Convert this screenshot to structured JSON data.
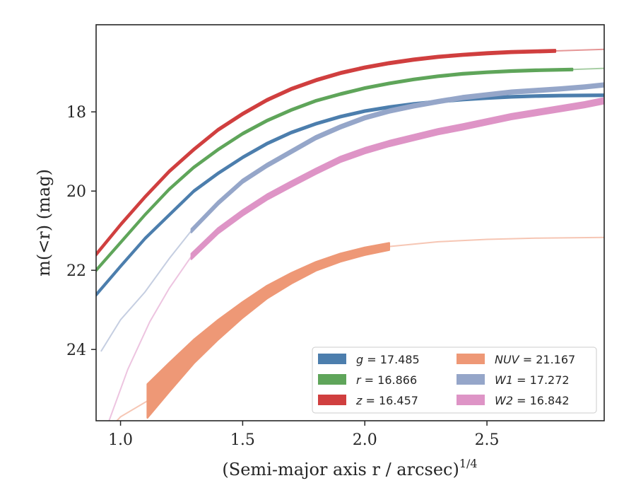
{
  "chart_data": {
    "type": "line",
    "xlabel": "(Semi-major axis r / arcsec)",
    "xlabel_sup": "1/4",
    "ylabel": "m(<r) (mag)",
    "xlim": [
      0.9,
      2.98
    ],
    "ylim": [
      25.8,
      15.8
    ],
    "y_inverted": true,
    "grid": false,
    "legend_position": "lower-right",
    "x_ticks": [
      1.0,
      1.5,
      2.0,
      2.5
    ],
    "x_tick_labels": [
      "1.0",
      "1.5",
      "2.0",
      "2.5"
    ],
    "y_ticks": [
      18,
      20,
      22,
      24
    ],
    "y_tick_labels": [
      "18",
      "20",
      "22",
      "24"
    ],
    "series": [
      {
        "name": "g = 17.485",
        "color": "#4c7ead",
        "band": 0.05,
        "fit": [
          [
            0.9,
            22.62
          ],
          [
            1.0,
            21.9
          ],
          [
            1.1,
            21.2
          ],
          [
            1.2,
            20.6
          ],
          [
            1.3,
            20.0
          ],
          [
            1.4,
            19.55
          ],
          [
            1.5,
            19.15
          ],
          [
            1.6,
            18.8
          ],
          [
            1.7,
            18.52
          ],
          [
            1.8,
            18.3
          ],
          [
            1.9,
            18.12
          ],
          [
            2.0,
            17.98
          ],
          [
            2.1,
            17.88
          ],
          [
            2.2,
            17.8
          ],
          [
            2.3,
            17.74
          ],
          [
            2.4,
            17.69
          ],
          [
            2.5,
            17.65
          ],
          [
            2.6,
            17.62
          ],
          [
            2.7,
            17.6
          ],
          [
            2.8,
            17.59
          ],
          [
            2.98,
            17.58
          ]
        ],
        "faded": []
      },
      {
        "name": "r = 16.866",
        "color": "#5fa55a",
        "band": 0.05,
        "fit": [
          [
            0.9,
            22.0
          ],
          [
            1.0,
            21.3
          ],
          [
            1.1,
            20.6
          ],
          [
            1.2,
            19.95
          ],
          [
            1.3,
            19.4
          ],
          [
            1.4,
            18.95
          ],
          [
            1.5,
            18.55
          ],
          [
            1.6,
            18.22
          ],
          [
            1.7,
            17.95
          ],
          [
            1.8,
            17.72
          ],
          [
            1.9,
            17.55
          ],
          [
            2.0,
            17.4
          ],
          [
            2.1,
            17.28
          ],
          [
            2.2,
            17.18
          ],
          [
            2.3,
            17.1
          ],
          [
            2.4,
            17.04
          ],
          [
            2.5,
            17.0
          ],
          [
            2.6,
            16.97
          ],
          [
            2.7,
            16.95
          ],
          [
            2.85,
            16.93
          ]
        ],
        "faded": [
          [
            2.85,
            16.93
          ],
          [
            2.98,
            16.9
          ]
        ]
      },
      {
        "name": "z = 16.457",
        "color": "#d03f3f",
        "band": 0.06,
        "fit": [
          [
            0.9,
            21.6
          ],
          [
            1.0,
            20.85
          ],
          [
            1.1,
            20.15
          ],
          [
            1.2,
            19.5
          ],
          [
            1.3,
            18.95
          ],
          [
            1.4,
            18.45
          ],
          [
            1.5,
            18.05
          ],
          [
            1.6,
            17.7
          ],
          [
            1.7,
            17.42
          ],
          [
            1.8,
            17.2
          ],
          [
            1.9,
            17.02
          ],
          [
            2.0,
            16.88
          ],
          [
            2.1,
            16.77
          ],
          [
            2.2,
            16.68
          ],
          [
            2.3,
            16.61
          ],
          [
            2.4,
            16.56
          ],
          [
            2.5,
            16.52
          ],
          [
            2.6,
            16.49
          ],
          [
            2.78,
            16.46
          ]
        ],
        "faded": [
          [
            2.78,
            16.46
          ],
          [
            2.98,
            16.42
          ]
        ]
      },
      {
        "name": "NUV = 21.167",
        "color": "#ee9876",
        "band_series": [
          [
            1.11,
            0.85
          ],
          [
            1.3,
            0.6
          ],
          [
            1.55,
            0.35
          ],
          [
            1.8,
            0.22
          ],
          [
            2.1,
            0.18
          ]
        ],
        "fit": [
          [
            1.11,
            25.3
          ],
          [
            1.2,
            24.7
          ],
          [
            1.3,
            24.05
          ],
          [
            1.4,
            23.5
          ],
          [
            1.5,
            23.0
          ],
          [
            1.6,
            22.55
          ],
          [
            1.7,
            22.2
          ],
          [
            1.8,
            21.9
          ],
          [
            1.9,
            21.68
          ],
          [
            2.0,
            21.52
          ],
          [
            2.1,
            21.4
          ]
        ],
        "faded": [
          [
            0.94,
            26.1
          ],
          [
            1.0,
            25.7
          ],
          [
            1.11,
            25.3
          ],
          [
            1.3,
            24.05
          ],
          [
            1.5,
            23.0
          ],
          [
            1.7,
            22.2
          ],
          [
            1.9,
            21.68
          ],
          [
            2.1,
            21.4
          ],
          [
            2.3,
            21.28
          ],
          [
            2.5,
            21.22
          ],
          [
            2.7,
            21.19
          ],
          [
            2.98,
            21.17
          ]
        ]
      },
      {
        "name": "W1 = 17.272",
        "color": "#95a6c9",
        "band": 0.09,
        "fit": [
          [
            1.29,
            21.0
          ],
          [
            1.4,
            20.3
          ],
          [
            1.5,
            19.75
          ],
          [
            1.6,
            19.35
          ],
          [
            1.7,
            19.0
          ],
          [
            1.8,
            18.65
          ],
          [
            1.9,
            18.38
          ],
          [
            2.0,
            18.15
          ],
          [
            2.1,
            17.98
          ],
          [
            2.2,
            17.85
          ],
          [
            2.3,
            17.74
          ],
          [
            2.4,
            17.64
          ],
          [
            2.5,
            17.57
          ],
          [
            2.6,
            17.5
          ],
          [
            2.7,
            17.46
          ],
          [
            2.8,
            17.42
          ],
          [
            2.9,
            17.37
          ],
          [
            2.98,
            17.32
          ]
        ],
        "faded": [
          [
            0.92,
            24.05
          ],
          [
            1.0,
            23.25
          ],
          [
            1.1,
            22.55
          ],
          [
            1.2,
            21.7
          ],
          [
            1.29,
            21.0
          ]
        ]
      },
      {
        "name": "W2 = 16.842",
        "color": "#de94c6",
        "band": 0.14,
        "fit": [
          [
            1.29,
            21.65
          ],
          [
            1.4,
            21.0
          ],
          [
            1.5,
            20.55
          ],
          [
            1.6,
            20.15
          ],
          [
            1.7,
            19.82
          ],
          [
            1.8,
            19.5
          ],
          [
            1.9,
            19.2
          ],
          [
            2.0,
            18.98
          ],
          [
            2.1,
            18.8
          ],
          [
            2.2,
            18.65
          ],
          [
            2.3,
            18.5
          ],
          [
            2.4,
            18.38
          ],
          [
            2.5,
            18.25
          ],
          [
            2.6,
            18.12
          ],
          [
            2.7,
            18.02
          ],
          [
            2.8,
            17.92
          ],
          [
            2.9,
            17.82
          ],
          [
            2.98,
            17.72
          ]
        ],
        "faded": [
          [
            0.95,
            25.85
          ],
          [
            1.03,
            24.5
          ],
          [
            1.12,
            23.3
          ],
          [
            1.2,
            22.45
          ],
          [
            1.29,
            21.65
          ]
        ]
      }
    ],
    "legend_entries": [
      {
        "sym": "g",
        "eq": " = 17.485",
        "color": "#4c7ead"
      },
      {
        "sym": "r",
        "eq": " = 16.866",
        "color": "#5fa55a"
      },
      {
        "sym": "z",
        "eq": " = 16.457",
        "color": "#d03f3f"
      },
      {
        "sym": "NUV",
        "eq": " = 21.167",
        "color": "#ee9876"
      },
      {
        "sym": "W1",
        "eq": " = 17.272",
        "color": "#95a6c9"
      },
      {
        "sym": "W2",
        "eq": " = 16.842",
        "color": "#de94c6"
      }
    ]
  }
}
